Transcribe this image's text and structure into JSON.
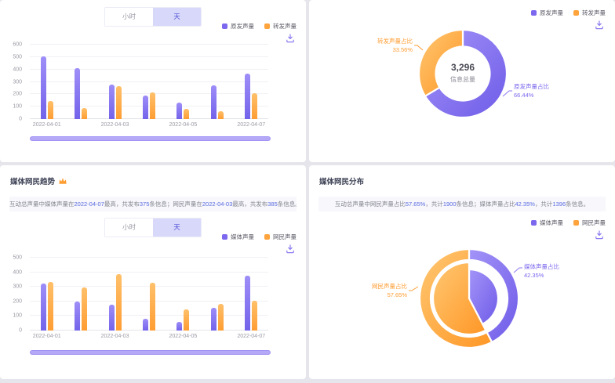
{
  "colors": {
    "purple": "#7b68ee",
    "orange": "#ffa43c",
    "toggle_active_bg": "#d8d8fa",
    "toggle_active_text": "#4f4fd8",
    "highlight_text": "#5b6be0",
    "datazoom": "#b4a8f7"
  },
  "icons": {
    "download": "download-icon",
    "media_trend_badge": "crown-icon"
  },
  "panels": {
    "volume_trend": {
      "toggle": {
        "hour": "小时",
        "day": "天"
      }
    },
    "volume_dist": {},
    "media_trend": {
      "title": "媒体网民趋势",
      "toggle": {
        "hour": "小时",
        "day": "天"
      },
      "summary": {
        "lead": "互动总声量中媒体声量在",
        "date1": "2022-04-07",
        "mid1": "最高，共发布",
        "count1": "375",
        "mid2": "条信息；网民声量在",
        "date2": "2022-04-03",
        "mid3": "最高，共发布",
        "count2": "385",
        "tail": "条信息。"
      }
    },
    "media_dist": {
      "title": "媒体网民分布",
      "summary": {
        "lead": "互动总声量中网民声量占比",
        "pct1": "57.65%",
        "mid1": "，共计",
        "count1": "1900",
        "mid2": "条信息；媒体声量占比",
        "pct2": "42.35%",
        "mid3": "，共计",
        "count2": "1396",
        "tail": "条信息。"
      }
    }
  },
  "chart_data": [
    {
      "type": "bar",
      "categories": [
        "2022-04-01",
        "2022-04-02",
        "2022-04-03",
        "2022-04-04",
        "2022-04-05",
        "2022-04-06",
        "2022-04-07"
      ],
      "x_label_every": 2,
      "series": [
        {
          "name": "原发声量",
          "color": "purple",
          "values": [
            505,
            410,
            280,
            190,
            130,
            270,
            365
          ]
        },
        {
          "name": "转发声量",
          "color": "orange",
          "values": [
            145,
            90,
            265,
            215,
            80,
            65,
            210
          ]
        }
      ],
      "ylim": [
        0,
        600
      ],
      "ytick_step": 100,
      "grid": true,
      "legend_position": "top-right"
    },
    {
      "type": "pie",
      "center_value": "3,296",
      "center_label": "信息总量",
      "slices": [
        {
          "name": "原发声量",
          "color": "purple",
          "pct": 66.44,
          "label": "原发声量占比",
          "pct_label": "66.44%"
        },
        {
          "name": "转发声量",
          "color": "orange",
          "pct": 33.56,
          "label": "转发声量占比",
          "pct_label": "33.56%"
        }
      ],
      "legend_position": "top-right"
    },
    {
      "type": "bar",
      "categories": [
        "2022-04-01",
        "2022-04-02",
        "2022-04-03",
        "2022-04-04",
        "2022-04-05",
        "2022-04-06",
        "2022-04-07"
      ],
      "x_label_every": 2,
      "series": [
        {
          "name": "媒体声量",
          "color": "purple",
          "values": [
            320,
            200,
            175,
            80,
            60,
            155,
            375
          ]
        },
        {
          "name": "网民声量",
          "color": "orange",
          "values": [
            335,
            295,
            385,
            330,
            145,
            185,
            205
          ]
        }
      ],
      "ylim": [
        0,
        500
      ],
      "ytick_step": 100,
      "grid": true,
      "legend_position": "top-right"
    },
    {
      "type": "pie",
      "nested": true,
      "slices": [
        {
          "name": "媒体声量",
          "color": "purple",
          "pct": 42.35,
          "pie_r": 37,
          "label": "媒体声量占比",
          "pct_label": "42.35%"
        },
        {
          "name": "网民声量",
          "color": "orange",
          "pct": 57.65,
          "pie_r": 46,
          "label": "网民声量占比",
          "pct_label": "57.65%"
        }
      ],
      "legend_position": "top-right"
    }
  ]
}
